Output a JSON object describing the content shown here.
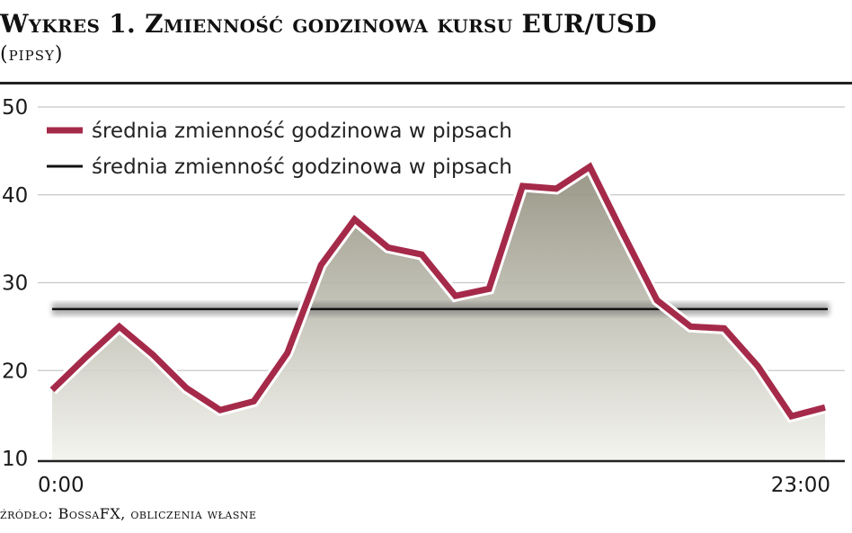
{
  "header": {
    "title": "Wykres 1. Zmienność godzinowa kursu EUR/USD",
    "subtitle": "(pipsy)"
  },
  "footer": {
    "source": "źródło: BossaFX, obliczenia własne"
  },
  "colors": {
    "series_line": "#a52a4a",
    "average_line": "#111111",
    "area_top": "#8e8c7a",
    "area_bottom": "#f3f3ee"
  },
  "chart_data": {
    "type": "line",
    "x": [
      "0:00",
      "1:00",
      "2:00",
      "3:00",
      "4:00",
      "5:00",
      "6:00",
      "7:00",
      "8:00",
      "9:00",
      "10:00",
      "11:00",
      "12:00",
      "13:00",
      "14:00",
      "15:00",
      "16:00",
      "17:00",
      "18:00",
      "19:00",
      "20:00",
      "21:00",
      "22:00",
      "23:00"
    ],
    "x_tick_labels": [
      "0:00",
      "23:00"
    ],
    "y_tick_labels": [
      "10",
      "20",
      "30",
      "40",
      "50"
    ],
    "ylim": [
      10,
      50
    ],
    "grid": true,
    "legend_position": "top-left",
    "series": [
      {
        "name": "średnia zmienność godzinowa w pipsach",
        "style": "area-line",
        "values": [
          17.8,
          21.5,
          25.0,
          21.8,
          18.0,
          15.5,
          16.5,
          22.0,
          32.0,
          37.2,
          34.0,
          33.2,
          28.5,
          29.3,
          41.0,
          40.7,
          43.2,
          35.5,
          28.0,
          25.0,
          24.8,
          20.5,
          14.8,
          15.8
        ]
      },
      {
        "name": "średnia zmienność godzinowa w pipsach",
        "style": "line",
        "values": [
          27.0,
          27.0,
          27.0,
          27.0,
          27.0,
          27.0,
          27.0,
          27.0,
          27.0,
          27.0,
          27.0,
          27.0,
          27.0,
          27.0,
          27.0,
          27.0,
          27.0,
          27.0,
          27.0,
          27.0,
          27.0,
          27.0,
          27.0,
          27.0
        ]
      }
    ]
  }
}
